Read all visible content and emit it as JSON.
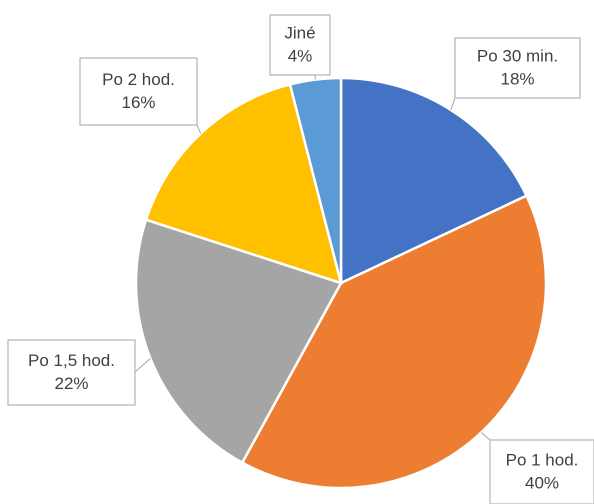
{
  "chart_data": {
    "type": "pie",
    "categories": [
      "Po 30 min.",
      "Po 1 hod.",
      "Po 1,5 hod.",
      "Po 2 hod.",
      "Jiné"
    ],
    "values": [
      18,
      40,
      22,
      16,
      4
    ],
    "value_labels": [
      "18%",
      "40%",
      "22%",
      "16%",
      "4%"
    ],
    "colors": [
      "#4472c4",
      "#ed7d31",
      "#a5a5a5",
      "#ffc000",
      "#5b9bd5"
    ]
  }
}
